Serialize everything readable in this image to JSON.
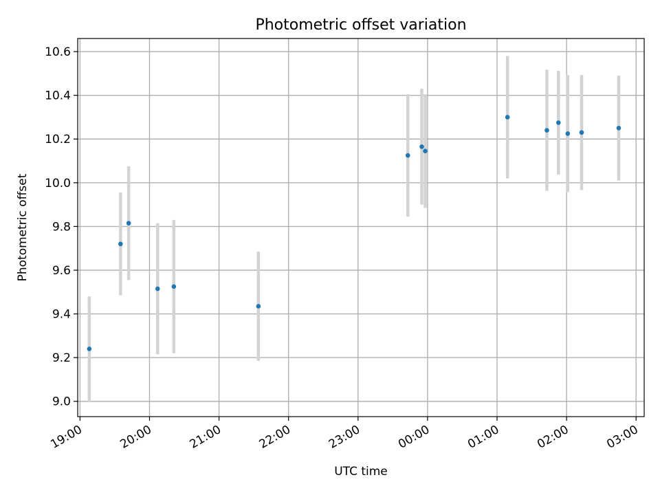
{
  "chart_data": {
    "type": "scatter",
    "title": "Photometric offset variation",
    "xlabel": "UTC time",
    "ylabel": "Photometric offset",
    "x_ticks": [
      "19:00",
      "20:00",
      "21:00",
      "22:00",
      "23:00",
      "00:00",
      "01:00",
      "02:00",
      "03:00"
    ],
    "y_ticks": [
      "9.0",
      "9.2",
      "9.4",
      "9.6",
      "9.8",
      "10.0",
      "10.2",
      "10.4",
      "10.6"
    ],
    "xlim": [
      "18:58",
      "03:07"
    ],
    "ylim": [
      8.93,
      10.66
    ],
    "grid": true,
    "series": [
      {
        "color": "#1f77b4",
        "errorbar_color": "#d3d3d3",
        "points": [
          {
            "x": "19:08",
            "y": 9.24,
            "yerr": 0.24
          },
          {
            "x": "19:35",
            "y": 9.72,
            "yerr": 0.235
          },
          {
            "x": "19:42",
            "y": 9.815,
            "yerr": 0.26
          },
          {
            "x": "20:07",
            "y": 9.515,
            "yerr": 0.3
          },
          {
            "x": "20:21",
            "y": 9.525,
            "yerr": 0.305
          },
          {
            "x": "21:34",
            "y": 9.435,
            "yerr": 0.25
          },
          {
            "x": "23:43",
            "y": 10.125,
            "yerr": 0.28
          },
          {
            "x": "23:55",
            "y": 10.165,
            "yerr": 0.265
          },
          {
            "x": "23:58",
            "y": 10.145,
            "yerr": 0.26
          },
          {
            "x": "01:09",
            "y": 10.3,
            "yerr": 0.28
          },
          {
            "x": "01:43",
            "y": 10.24,
            "yerr": 0.277
          },
          {
            "x": "01:53",
            "y": 10.275,
            "yerr": 0.237
          },
          {
            "x": "02:01",
            "y": 10.225,
            "yerr": 0.268
          },
          {
            "x": "02:13",
            "y": 10.23,
            "yerr": 0.263
          },
          {
            "x": "02:45",
            "y": 10.25,
            "yerr": 0.24
          }
        ]
      }
    ]
  }
}
